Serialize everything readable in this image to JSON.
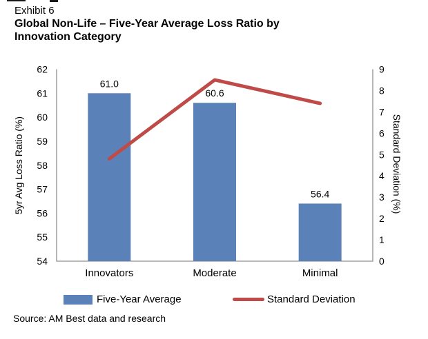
{
  "header": {
    "exhibit_label": "Exhibit 6",
    "title": "Global Non-Life – Five-Year Average Loss Ratio by Innovation Category"
  },
  "chart_data": {
    "type": "bar",
    "subtype": "bar-line-combo-dual-axis",
    "categories": [
      "Innovators",
      "Moderate",
      "Minimal"
    ],
    "series": [
      {
        "name": "Five-Year Average",
        "type": "bar",
        "axis": "left",
        "values": [
          61.0,
          60.6,
          56.4
        ],
        "labels": [
          "61.0",
          "60.6",
          "56.4"
        ],
        "color": "#5B82B8"
      },
      {
        "name": "Standard Deviation",
        "type": "line",
        "axis": "right",
        "values": [
          4.8,
          8.5,
          7.4
        ],
        "color": "#BE4B48"
      }
    ],
    "left_axis": {
      "title": "5yr Avg Loss Ratio (%)",
      "min": 54,
      "max": 62,
      "step": 1
    },
    "right_axis": {
      "title": "Standard Deviation (%)",
      "min": 0,
      "max": 9,
      "step": 1
    },
    "legend_position": "bottom",
    "grid": false,
    "axis_color": "#A3A3A3"
  },
  "footer": {
    "source": "Source: AM Best data and research"
  }
}
